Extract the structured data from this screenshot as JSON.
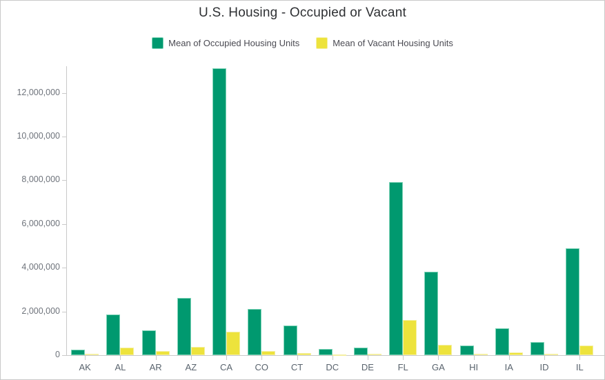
{
  "window": {
    "background": "#ffffff",
    "border_color": "#c8c8c8"
  },
  "chart_data": {
    "type": "bar",
    "title": "U.S. Housing - Occupied or Vacant",
    "xlabel": "",
    "ylabel": "",
    "legend_position": "top",
    "grid": false,
    "categories": [
      "AK",
      "AL",
      "AR",
      "AZ",
      "CA",
      "CO",
      "CT",
      "DC",
      "DE",
      "FL",
      "GA",
      "HI",
      "IA",
      "ID",
      "IL"
    ],
    "series": [
      {
        "name": "Mean of Occupied Housing Units",
        "color": "#00996f",
        "stroke": "#7fd4b8",
        "values": [
          250000,
          1870000,
          1150000,
          2630000,
          13120000,
          2100000,
          1370000,
          270000,
          340000,
          7930000,
          3820000,
          450000,
          1240000,
          610000,
          4890000
        ]
      },
      {
        "name": "Mean of Vacant Housing Units",
        "color": "#ede33c",
        "stroke": "#f4efa3",
        "values": [
          60000,
          360000,
          190000,
          380000,
          1080000,
          200000,
          110000,
          35000,
          55000,
          1600000,
          480000,
          70000,
          120000,
          70000,
          450000
        ]
      }
    ],
    "y_axis": {
      "range": [
        0,
        13400000
      ],
      "ticks": [
        0,
        2000000,
        4000000,
        6000000,
        8000000,
        10000000,
        12000000
      ],
      "tick_labels": [
        "0",
        "2,000,000",
        "4,000,000",
        "6,000,000",
        "8,000,000",
        "10,000,000",
        "12,000,000"
      ]
    },
    "colors": {
      "axis": "#c9c9c9",
      "title_text": "#2e3033",
      "legend_text": "#4a4a52",
      "y_label_text": "#6e737b",
      "x_label_text": "#59636d"
    }
  }
}
